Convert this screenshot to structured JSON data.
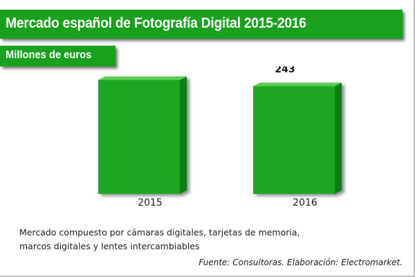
{
  "header": {
    "title": "Mercado español de Fotografía Digital 2015-2016",
    "subtitle": "Millones de euros"
  },
  "chart_data": {
    "type": "bar",
    "categories": [
      "2015",
      "2016"
    ],
    "values": [
      257,
      243
    ],
    "title": "Mercado español de Fotografía Digital 2015-2016",
    "ylabel": "Millones de euros",
    "ylim": [
      0,
      300
    ],
    "grid": false,
    "bar_color": "#1fa620"
  },
  "footer": {
    "note_line1": "Mercado compuesto por cámaras digitales, tarjetas de memoria,",
    "note_line2": "marcos digitales y lentes intercambiables",
    "source": "Fuente: Consultoras. Elaboración: Electromarket."
  },
  "colors": {
    "brand_green": "#19a11e",
    "bar_front": "#1fa620",
    "bar_side": "#0f7e13",
    "bar_top": "#5bcd52"
  }
}
